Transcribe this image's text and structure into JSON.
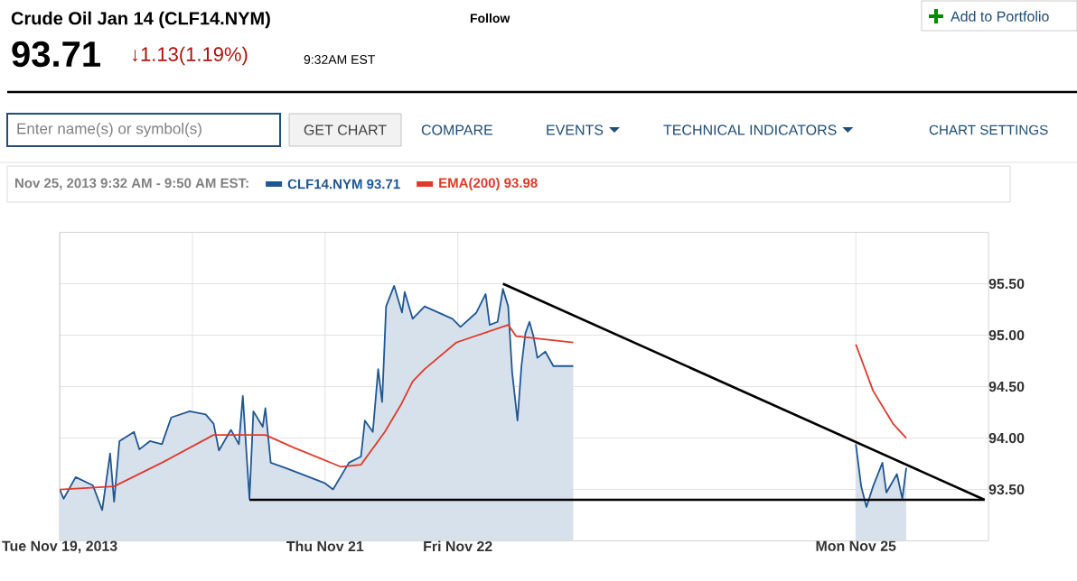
{
  "chart_data": {
    "type": "line",
    "title": "Crude Oil Jan 14 (CLF14.NYM)",
    "subtitle": "93.71",
    "legend_title": "Nov 25, 2013 9:32 AM - 9:50 AM EST:",
    "legend": "top left",
    "grid": true,
    "annotations": [
      "↓1.13(1.19%)",
      "9:32AM EST",
      "Follow",
      "Add to Portfolio",
      "Enter name(s) or symbol(s)",
      "GET CHART",
      "COMPARE",
      "EVENTS",
      "TECHNICAL INDICATORS",
      "CHART SETTINGS"
    ],
    "xlim": [
      "2013-11-19T00:00",
      "2013-11-26T00:00"
    ],
    "xticks": [
      {
        "value": "2013-11-19",
        "label": "Tue Nov 19, 2013"
      },
      {
        "value": "2013-11-20",
        "label": null
      },
      {
        "value": "2013-11-21",
        "label": "Thu Nov 21"
      },
      {
        "value": "2013-11-22",
        "label": "Fri Nov 22"
      },
      {
        "value": "2013-11-25",
        "label": "Mon Nov 25"
      }
    ],
    "ylim": [
      93.0,
      96.0
    ],
    "yticks": [
      {
        "value": 93.5,
        "label": "93.50"
      },
      {
        "value": 94.0,
        "label": "94.00"
      },
      {
        "value": 94.5,
        "label": "94.50"
      },
      {
        "value": 95.0,
        "label": "95.00"
      },
      {
        "value": 95.5,
        "label": "95.50"
      }
    ],
    "series": [
      {
        "name": "CLF14.NYM 93.71",
        "type": "area",
        "color": "#1f5794",
        "x": [
          "2013-11-19T00:00",
          "2013-11-19T00:43",
          "2013-11-19T02:53",
          "2013-11-19T06:00",
          "2013-11-19T07:41",
          "2013-11-19T09:07",
          "2013-11-19T09:50",
          "2013-11-19T10:48",
          "2013-11-19T13:26",
          "2013-11-19T14:24",
          "2013-11-19T16:19",
          "2013-11-19T18:29",
          "2013-11-19T20:10",
          "2013-11-19T23:31",
          "2013-11-20T02:24",
          "2013-11-20T03:50",
          "2013-11-20T04:48",
          "2013-11-20T06:58",
          "2013-11-20T08:24",
          "2013-11-20T09:07",
          "2013-11-20T10:19",
          "2013-11-20T11:02",
          "2013-11-20T12:43",
          "2013-11-20T13:12",
          "2013-11-20T14:10",
          "2013-11-20T16:48",
          "2013-11-20T19:41",
          "2013-11-21T00:00",
          "2013-11-21T01:26",
          "2013-11-21T04:19",
          "2013-11-21T06:29",
          "2013-11-21T07:12",
          "2013-11-21T08:38",
          "2013-11-21T09:36",
          "2013-11-21T10:19",
          "2013-11-21T11:02",
          "2013-11-21T12:29",
          "2013-11-21T13:55",
          "2013-11-21T14:24",
          "2013-11-21T15:50",
          "2013-11-21T18:00",
          "2013-11-21T23:02",
          "2013-11-22T00:29",
          "2013-11-22T03:22",
          "2013-11-22T05:02",
          "2013-11-22T05:46",
          "2013-11-22T07:12",
          "2013-11-22T08:10",
          "2013-11-22T09:07",
          "2013-11-22T09:50",
          "2013-11-22T10:48",
          "2013-11-22T11:31",
          "2013-11-22T12:14",
          "2013-11-22T12:58",
          "2013-11-22T13:41",
          "2013-11-22T14:24",
          "2013-11-22T15:50",
          "2013-11-22T17:17",
          "2013-11-22T20:53",
          "2013-11-22T22:19",
          "2013-11-25T00:00",
          "2013-11-25T00:58",
          "2013-11-25T01:55",
          "2013-11-25T03:07",
          "2013-11-25T04:48",
          "2013-11-25T05:31",
          "2013-11-25T07:26",
          "2013-11-25T08:24",
          "2013-11-25T09:07"
        ],
        "values": [
          93.5,
          93.41,
          93.62,
          93.54,
          93.3,
          93.85,
          93.38,
          93.97,
          94.06,
          93.89,
          93.97,
          93.94,
          94.2,
          94.26,
          94.23,
          94.14,
          93.88,
          94.08,
          93.94,
          94.41,
          93.41,
          94.26,
          94.11,
          94.29,
          93.76,
          93.71,
          93.65,
          93.56,
          93.5,
          93.76,
          93.82,
          94.17,
          94.06,
          94.67,
          94.35,
          95.28,
          95.48,
          95.22,
          95.42,
          95.16,
          95.28,
          95.16,
          95.08,
          95.22,
          95.4,
          95.1,
          95.13,
          95.45,
          95.28,
          94.64,
          94.17,
          94.7,
          95.02,
          95.13,
          94.99,
          94.78,
          94.84,
          94.7,
          94.7,
          null,
          93.94,
          93.53,
          93.33,
          93.53,
          93.76,
          93.47,
          93.65,
          93.41,
          93.71
        ]
      },
      {
        "name": "EMA(200) 93.98",
        "color": "#e0392b",
        "x": [
          "2013-11-19T00:00",
          "2013-11-19T09:50",
          "2013-11-19T18:29",
          "2013-11-20T03:50",
          "2013-11-20T13:12",
          "2013-11-20T18:14",
          "2013-11-21T02:53",
          "2013-11-21T06:29",
          "2013-11-21T10:48",
          "2013-11-21T13:41",
          "2013-11-21T15:50",
          "2013-11-21T18:00",
          "2013-11-21T23:46",
          "2013-11-22T09:07",
          "2013-11-22T10:34",
          "2013-11-22T20:53",
          "2013-11-22T22:19",
          "2013-11-25T00:00",
          "2013-11-25T03:07",
          "2013-11-25T06:43",
          "2013-11-25T09:07"
        ],
        "values": [
          93.5,
          93.53,
          93.76,
          94.03,
          94.03,
          93.91,
          93.72,
          93.74,
          94.06,
          94.32,
          94.55,
          94.67,
          94.93,
          95.1,
          94.99,
          94.93,
          null,
          94.91,
          94.46,
          94.14,
          94.0
        ]
      },
      {
        "color": "#000000",
        "x": [
          "2013-11-20T10:19",
          "2013-11-25T23:17"
        ],
        "values": [
          93.4,
          93.4
        ]
      },
      {
        "color": "#000000",
        "x": [
          "2013-11-22T08:10",
          "2013-11-25T23:17"
        ],
        "values": [
          95.5,
          93.4
        ]
      }
    ]
  }
}
